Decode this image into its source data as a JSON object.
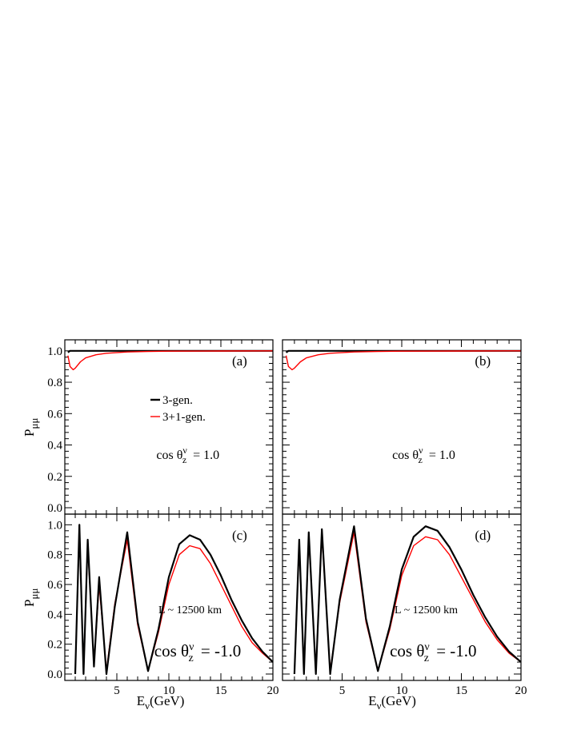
{
  "chart_data": [
    {
      "type": "line",
      "panel": "(a)",
      "ylabel": "P",
      "ylabel_sub": "μμ",
      "xlim": [
        0,
        20
      ],
      "ylim": [
        0,
        1.05
      ],
      "yticks": [
        "0.0",
        "0.2",
        "0.4",
        "0.6",
        "0.8",
        "1.0"
      ],
      "annotation": {
        "cos_text": "cos θ",
        "cos_sup": "ν",
        "cos_sub": "z",
        "cos_value": "= 1.0"
      },
      "legend": [
        "3-gen.",
        "3+1-gen."
      ],
      "series": [
        {
          "name": "3-gen.",
          "color": "#000000",
          "x": [
            0.3,
            0.5,
            1,
            2,
            5,
            10,
            20
          ],
          "y": [
            0.99,
            1.0,
            1.0,
            1.0,
            1.0,
            1.0,
            1.0
          ]
        },
        {
          "name": "3+1-gen.",
          "color": "#ff0000",
          "x": [
            0.3,
            0.5,
            0.8,
            1.0,
            1.5,
            2,
            3,
            4,
            6,
            8,
            10,
            15,
            20
          ],
          "y": [
            0.97,
            0.9,
            0.88,
            0.89,
            0.93,
            0.955,
            0.975,
            0.985,
            0.993,
            0.996,
            0.998,
            0.999,
            1.0
          ]
        }
      ]
    },
    {
      "type": "line",
      "panel": "(b)",
      "xlim": [
        0,
        20
      ],
      "ylim": [
        0,
        1.05
      ],
      "annotation": {
        "cos_text": "cos θ",
        "cos_sup": "ν",
        "cos_sub": "z",
        "cos_value": "= 1.0"
      },
      "series": [
        {
          "name": "3-gen.",
          "color": "#000000",
          "x": [
            0.3,
            0.5,
            1,
            2,
            5,
            10,
            20
          ],
          "y": [
            0.99,
            1.0,
            1.0,
            1.0,
            1.0,
            1.0,
            1.0
          ]
        },
        {
          "name": "3+1-gen.",
          "color": "#ff0000",
          "x": [
            0.3,
            0.5,
            0.8,
            1.0,
            1.5,
            2,
            3,
            4,
            6,
            8,
            10,
            15,
            20
          ],
          "y": [
            0.97,
            0.9,
            0.88,
            0.89,
            0.93,
            0.955,
            0.975,
            0.985,
            0.993,
            0.996,
            0.998,
            0.999,
            1.0
          ]
        }
      ]
    },
    {
      "type": "line",
      "panel": "(c)",
      "xlabel": "E",
      "xlabel_sub": "ν",
      "xlabel_unit": "(GeV)",
      "ylabel": "P",
      "ylabel_sub": "μμ",
      "xlim": [
        0,
        20
      ],
      "ylim": [
        0,
        1.05
      ],
      "xticks": [
        "5",
        "10",
        "15",
        "20"
      ],
      "yticks": [
        "0.0",
        "0.2",
        "0.4",
        "0.6",
        "0.8",
        "1.0"
      ],
      "baseline_text": "L ~ 12500 km",
      "annotation": {
        "cos_text": "cos θ",
        "cos_sup": "ν",
        "cos_sub": "z",
        "cos_value": "= -1.0"
      },
      "series": [
        {
          "name": "3-gen.",
          "color": "#000000",
          "x": [
            1.0,
            1.4,
            1.8,
            2.2,
            2.8,
            3.3,
            4.0,
            4.8,
            6.0,
            7.0,
            8.0,
            9.0,
            10.0,
            11.0,
            12.0,
            13.0,
            14.0,
            15.0,
            16.0,
            17.0,
            18.0,
            19.0,
            20.0
          ],
          "y": [
            0.0,
            1.0,
            0.0,
            0.9,
            0.05,
            0.65,
            0.0,
            0.45,
            0.95,
            0.35,
            0.02,
            0.3,
            0.65,
            0.87,
            0.93,
            0.9,
            0.8,
            0.66,
            0.5,
            0.36,
            0.24,
            0.15,
            0.08
          ]
        },
        {
          "name": "3+1-gen.",
          "color": "#ff0000",
          "x": [
            1.0,
            1.4,
            1.8,
            2.2,
            2.8,
            3.3,
            4.0,
            4.8,
            6.0,
            7.0,
            8.0,
            9.0,
            10.0,
            11.0,
            12.0,
            13.0,
            14.0,
            15.0,
            16.0,
            17.0,
            18.0,
            19.0,
            20.0
          ],
          "y": [
            0.0,
            0.97,
            0.0,
            0.87,
            0.06,
            0.6,
            0.02,
            0.47,
            0.9,
            0.33,
            0.02,
            0.28,
            0.6,
            0.8,
            0.86,
            0.84,
            0.74,
            0.6,
            0.46,
            0.32,
            0.21,
            0.14,
            0.08
          ]
        }
      ]
    },
    {
      "type": "line",
      "panel": "(d)",
      "xlabel": "E",
      "xlabel_sub": "ν",
      "xlabel_unit": "(GeV)",
      "xlim": [
        0,
        20
      ],
      "ylim": [
        0,
        1.05
      ],
      "xticks": [
        "5",
        "10",
        "15",
        "20"
      ],
      "baseline_text": "L ~ 12500 km",
      "annotation": {
        "cos_text": "cos θ",
        "cos_sup": "ν",
        "cos_sub": "z",
        "cos_value": "= -1.0"
      },
      "series": [
        {
          "name": "3-gen.",
          "color": "#000000",
          "x": [
            1.0,
            1.4,
            1.8,
            2.2,
            2.8,
            3.3,
            4.0,
            4.8,
            6.0,
            7.0,
            8.0,
            9.0,
            10.0,
            11.0,
            12.0,
            13.0,
            14.0,
            15.0,
            16.0,
            17.0,
            18.0,
            19.0,
            20.0
          ],
          "y": [
            0.0,
            0.9,
            0.0,
            0.95,
            0.0,
            0.97,
            0.0,
            0.5,
            0.99,
            0.37,
            0.02,
            0.32,
            0.7,
            0.92,
            0.99,
            0.96,
            0.85,
            0.7,
            0.53,
            0.38,
            0.25,
            0.15,
            0.08
          ]
        },
        {
          "name": "3+1-gen.",
          "color": "#ff0000",
          "x": [
            1.0,
            1.4,
            1.8,
            2.2,
            2.8,
            3.3,
            4.0,
            4.8,
            6.0,
            7.0,
            8.0,
            9.0,
            10.0,
            11.0,
            12.0,
            13.0,
            14.0,
            15.0,
            16.0,
            17.0,
            18.0,
            19.0,
            20.0
          ],
          "y": [
            0.0,
            0.88,
            0.0,
            0.92,
            0.02,
            0.94,
            0.02,
            0.48,
            0.95,
            0.35,
            0.02,
            0.3,
            0.66,
            0.86,
            0.92,
            0.9,
            0.8,
            0.65,
            0.5,
            0.35,
            0.23,
            0.14,
            0.08
          ]
        }
      ]
    }
  ]
}
